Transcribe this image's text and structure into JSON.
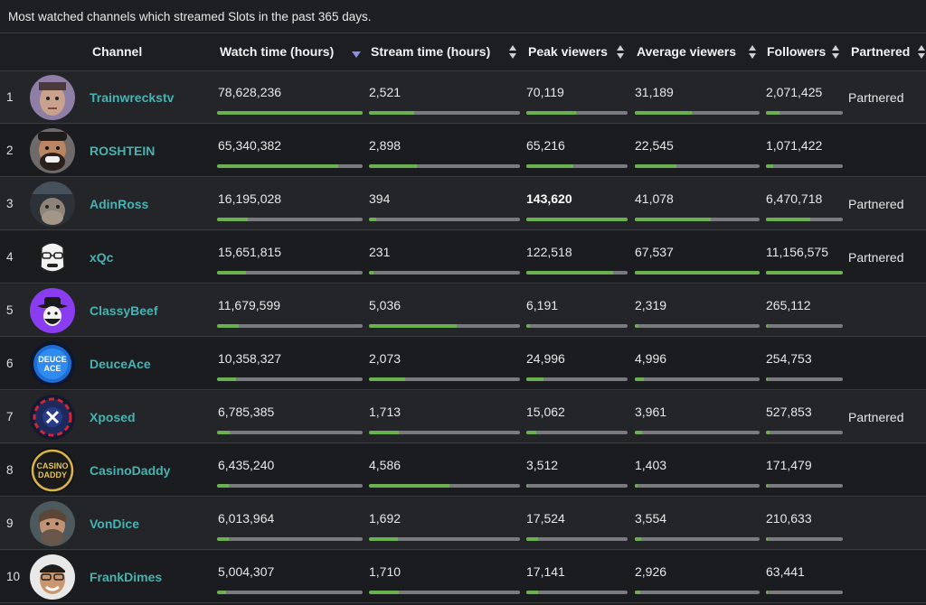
{
  "caption": "Most watched channels which streamed Slots in the past 365 days.",
  "columns": {
    "channel": "Channel",
    "watch_time": "Watch time (hours)",
    "stream_time": "Stream time (hours)",
    "peak_viewers": "Peak viewers",
    "average_viewers": "Average viewers",
    "followers": "Followers",
    "partnered": "Partnered"
  },
  "colors": {
    "link": "#46b3b3",
    "bar_fill": "#6bb14f",
    "bar_track": "#7a7b80",
    "sort_active": "#8d8fe6"
  },
  "rows": [
    {
      "rank": "1",
      "channel": "Trainwreckstv",
      "avatar": "avatar-trainwreckstv",
      "watch_time": "78,628,236",
      "stream_time": "2,521",
      "peak_viewers": "70,119",
      "average_viewers": "31,189",
      "followers": "2,071,425",
      "partnered": "Partnered",
      "peak_bold": false,
      "fills": {
        "watch_time": 1.0,
        "stream_time": 0.3,
        "peak_viewers": 0.49,
        "average_viewers": 0.46,
        "followers": 0.18
      }
    },
    {
      "rank": "2",
      "channel": "ROSHTEIN",
      "avatar": "avatar-roshtein",
      "watch_time": "65,340,382",
      "stream_time": "2,898",
      "peak_viewers": "65,216",
      "average_viewers": "22,545",
      "followers": "1,071,422",
      "partnered": "",
      "peak_bold": false,
      "fills": {
        "watch_time": 0.83,
        "stream_time": 0.32,
        "peak_viewers": 0.46,
        "average_viewers": 0.33,
        "followers": 0.09
      }
    },
    {
      "rank": "3",
      "channel": "AdinRoss",
      "avatar": "avatar-adinross",
      "watch_time": "16,195,028",
      "stream_time": "394",
      "peak_viewers": "143,620",
      "average_viewers": "41,078",
      "followers": "6,470,718",
      "partnered": "Partnered",
      "peak_bold": true,
      "fills": {
        "watch_time": 0.21,
        "stream_time": 0.05,
        "peak_viewers": 1.0,
        "average_viewers": 0.61,
        "followers": 0.58
      }
    },
    {
      "rank": "4",
      "channel": "xQc",
      "avatar": "avatar-xqc",
      "watch_time": "15,651,815",
      "stream_time": "231",
      "peak_viewers": "122,518",
      "average_viewers": "67,537",
      "followers": "11,156,575",
      "partnered": "Partnered",
      "peak_bold": false,
      "fills": {
        "watch_time": 0.2,
        "stream_time": 0.03,
        "peak_viewers": 0.86,
        "average_viewers": 1.0,
        "followers": 1.0
      }
    },
    {
      "rank": "5",
      "channel": "ClassyBeef",
      "avatar": "avatar-classybeef",
      "watch_time": "11,679,599",
      "stream_time": "5,036",
      "peak_viewers": "6,191",
      "average_viewers": "2,319",
      "followers": "265,112",
      "partnered": "",
      "peak_bold": false,
      "fills": {
        "watch_time": 0.15,
        "stream_time": 0.58,
        "peak_viewers": 0.04,
        "average_viewers": 0.03,
        "followers": 0.02
      }
    },
    {
      "rank": "6",
      "channel": "DeuceAce",
      "avatar": "avatar-deuceace",
      "watch_time": "10,358,327",
      "stream_time": "2,073",
      "peak_viewers": "24,996",
      "average_viewers": "4,996",
      "followers": "254,753",
      "partnered": "",
      "peak_bold": false,
      "fills": {
        "watch_time": 0.13,
        "stream_time": 0.24,
        "peak_viewers": 0.17,
        "average_viewers": 0.07,
        "followers": 0.02
      }
    },
    {
      "rank": "7",
      "channel": "Xposed",
      "avatar": "avatar-xposed",
      "watch_time": "6,785,385",
      "stream_time": "1,713",
      "peak_viewers": "15,062",
      "average_viewers": "3,961",
      "followers": "527,853",
      "partnered": "Partnered",
      "peak_bold": false,
      "fills": {
        "watch_time": 0.09,
        "stream_time": 0.2,
        "peak_viewers": 0.1,
        "average_viewers": 0.06,
        "followers": 0.05
      }
    },
    {
      "rank": "8",
      "channel": "CasinoDaddy",
      "avatar": "avatar-casinodaddy",
      "watch_time": "6,435,240",
      "stream_time": "4,586",
      "peak_viewers": "3,512",
      "average_viewers": "1,403",
      "followers": "171,479",
      "partnered": "",
      "peak_bold": false,
      "fills": {
        "watch_time": 0.08,
        "stream_time": 0.53,
        "peak_viewers": 0.02,
        "average_viewers": 0.02,
        "followers": 0.015
      }
    },
    {
      "rank": "9",
      "channel": "VonDice",
      "avatar": "avatar-vondice",
      "watch_time": "6,013,964",
      "stream_time": "1,692",
      "peak_viewers": "17,524",
      "average_viewers": "3,554",
      "followers": "210,633",
      "partnered": "",
      "peak_bold": false,
      "fills": {
        "watch_time": 0.08,
        "stream_time": 0.19,
        "peak_viewers": 0.12,
        "average_viewers": 0.05,
        "followers": 0.02
      }
    },
    {
      "rank": "10",
      "channel": "FrankDimes",
      "avatar": "avatar-frankdimes",
      "watch_time": "5,004,307",
      "stream_time": "1,710",
      "peak_viewers": "17,141",
      "average_viewers": "2,926",
      "followers": "63,441",
      "partnered": "",
      "peak_bold": false,
      "fills": {
        "watch_time": 0.06,
        "stream_time": 0.2,
        "peak_viewers": 0.12,
        "average_viewers": 0.04,
        "followers": 0.006
      }
    }
  ]
}
